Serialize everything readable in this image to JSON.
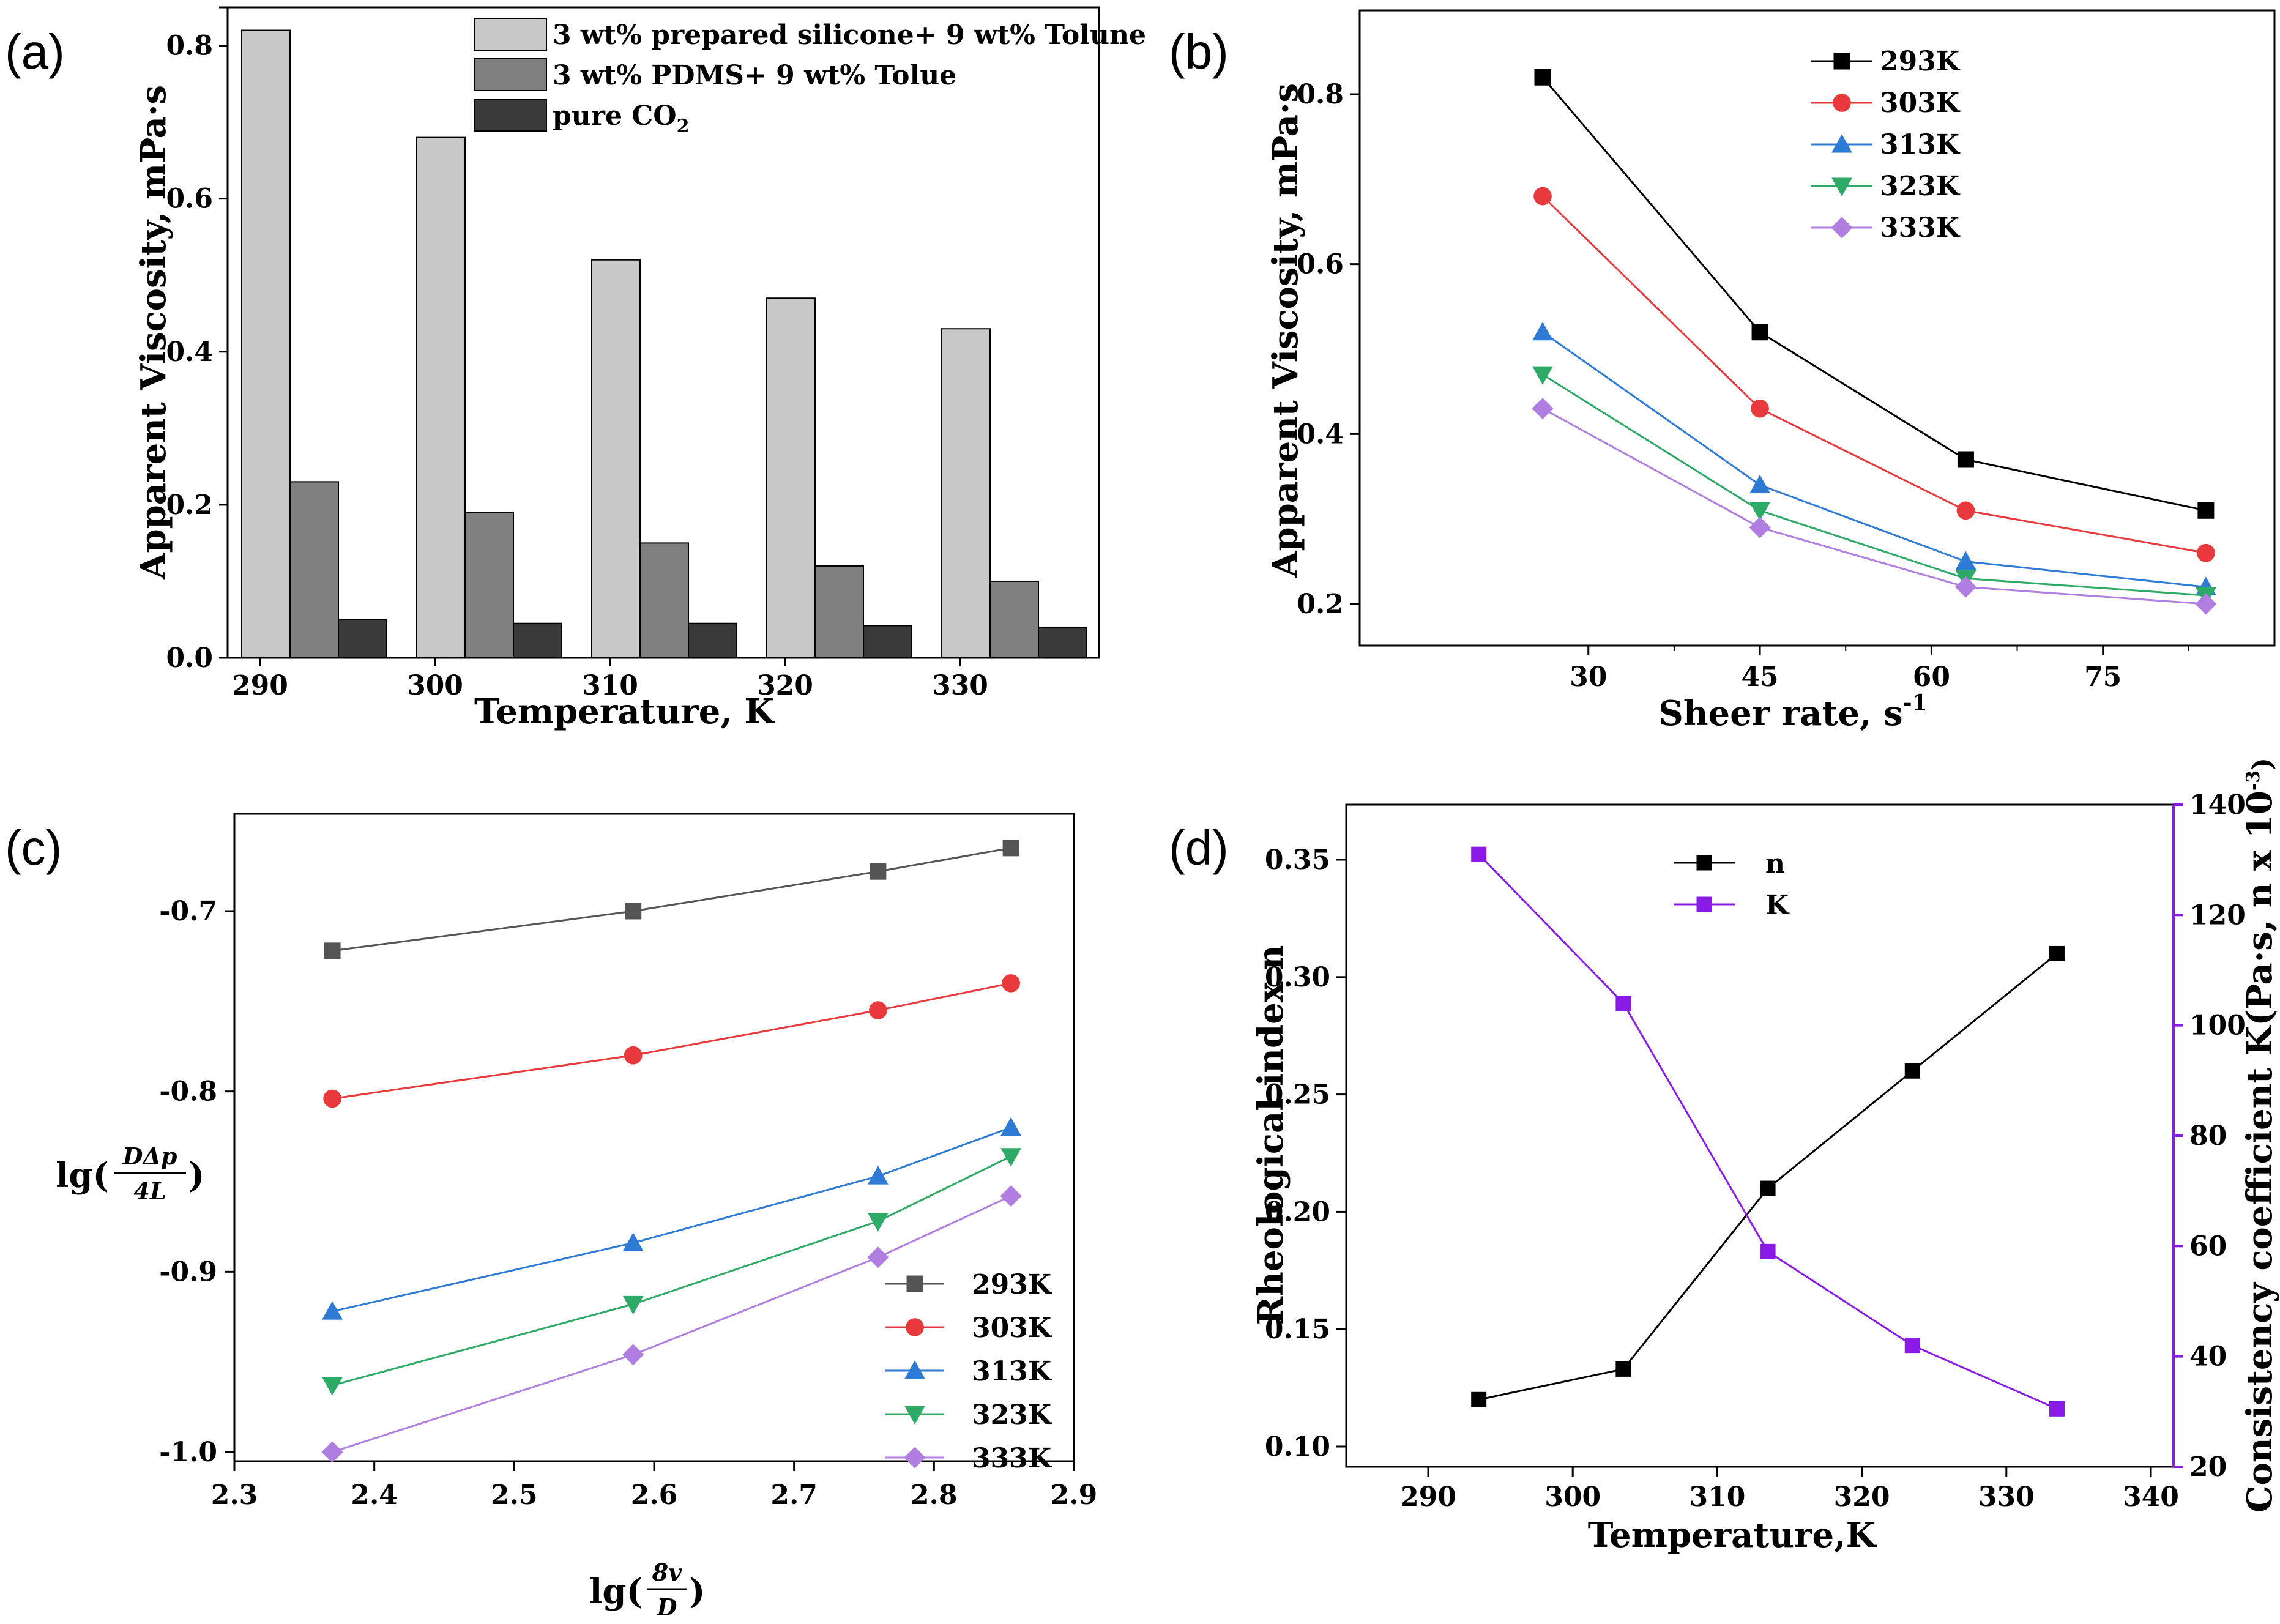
{
  "colors": {
    "s293": "#000000",
    "s303": "#e8393c",
    "s313": "#2e7bd6",
    "s323": "#2daa66",
    "s333": "#b07ee0",
    "n_series": "#000000",
    "k_series": "#8a1be6",
    "bar_light": "#c8c8c8",
    "bar_mid": "#808080",
    "bar_dark": "#3a3a3a",
    "gray293c": "#555555"
  },
  "chart_data": [
    {
      "panel": "(a)",
      "type": "bar",
      "xlabel": "Temperature, K",
      "ylabel": "Apparent Viscosity, mPa·s",
      "ylim": [
        0,
        0.85
      ],
      "yticks": [
        "0.0",
        "0.2",
        "0.4",
        "0.6",
        "0.8"
      ],
      "categories": [
        "290",
        "300",
        "310",
        "320",
        "330"
      ],
      "series": [
        {
          "name": "3 wt% prepared silicone+ 9 wt% Tolune",
          "color": "bar_light",
          "values": [
            0.82,
            0.68,
            0.52,
            0.47,
            0.43
          ]
        },
        {
          "name": "3 wt% PDMS+ 9 wt% Tolue",
          "color": "bar_mid",
          "values": [
            0.23,
            0.19,
            0.15,
            0.12,
            0.1
          ]
        },
        {
          "name": "pure CO",
          "sub": "2",
          "color": "bar_dark",
          "values": [
            0.05,
            0.045,
            0.045,
            0.042,
            0.04
          ]
        }
      ]
    },
    {
      "panel": "(b)",
      "type": "line",
      "xlabel": "Sheer rate, s",
      "xlabel_sup": "-1",
      "ylabel": "Apparent Viscosity, mPa·s",
      "xlim": [
        10,
        90
      ],
      "ylim": [
        0.15,
        0.9
      ],
      "xticks": [
        "30",
        "45",
        "60",
        "75"
      ],
      "yticks": [
        "0.2",
        "0.4",
        "0.6",
        "0.8"
      ],
      "x": [
        26,
        45,
        63,
        84
      ],
      "series": [
        {
          "name": "293K",
          "color": "s293",
          "marker": "square",
          "values": [
            0.82,
            0.52,
            0.37,
            0.31
          ]
        },
        {
          "name": "303K",
          "color": "s303",
          "marker": "circle",
          "values": [
            0.68,
            0.43,
            0.31,
            0.26
          ]
        },
        {
          "name": "313K",
          "color": "s313",
          "marker": "triangle-up",
          "values": [
            0.52,
            0.34,
            0.25,
            0.22
          ]
        },
        {
          "name": "323K",
          "color": "s323",
          "marker": "triangle-down",
          "values": [
            0.47,
            0.31,
            0.23,
            0.21
          ]
        },
        {
          "name": "333K",
          "color": "s333",
          "marker": "diamond",
          "values": [
            0.43,
            0.29,
            0.22,
            0.2
          ]
        }
      ]
    },
    {
      "panel": "(c)",
      "type": "line",
      "xlabel_prefix": "lg(",
      "xlabel_num": "8v",
      "xlabel_den": "D",
      "xlabel_suffix": ")",
      "ylabel_prefix": "lg(",
      "ylabel_num": "DΔp",
      "ylabel_den": "4L",
      "ylabel_suffix": ")",
      "xlim": [
        2.3,
        2.9
      ],
      "ylim": [
        -1.02,
        -0.655
      ],
      "xticks": [
        "2.3",
        "2.4",
        "2.5",
        "2.6",
        "2.7",
        "2.8",
        "2.9"
      ],
      "yticks": [
        "-0.7",
        "-0.8",
        "-0.9",
        "-1.0"
      ],
      "x": [
        2.37,
        2.585,
        2.76,
        2.855
      ],
      "series": [
        {
          "name": "293K",
          "color": "gray293c",
          "marker": "square",
          "values": [
            -0.722,
            -0.7,
            -0.678,
            -0.665
          ]
        },
        {
          "name": "303K",
          "color": "s303",
          "marker": "circle",
          "values": [
            -0.804,
            -0.78,
            -0.755,
            -0.74
          ]
        },
        {
          "name": "313K",
          "color": "s313",
          "marker": "triangle-up",
          "values": [
            -0.922,
            -0.884,
            -0.847,
            -0.82
          ]
        },
        {
          "name": "323K",
          "color": "s323",
          "marker": "triangle-down",
          "values": [
            -0.963,
            -0.918,
            -0.872,
            -0.836
          ]
        },
        {
          "name": "333K",
          "color": "s333",
          "marker": "diamond",
          "values": [
            -1.0,
            -0.946,
            -0.892,
            -0.858
          ]
        }
      ]
    },
    {
      "panel": "(d)",
      "type": "line",
      "xlabel": "Temperature,K",
      "ylabel_left": "Rheological index n",
      "ylabel_right": "Consistency coefficient K(Pa·s, n x 10",
      "ylabel_right_sup": "-3",
      "ylabel_right_suffix": ")",
      "xlim": [
        285,
        342
      ],
      "ylim_left": [
        0.09,
        0.37
      ],
      "ylim_right": [
        20,
        140
      ],
      "xticks": [
        "290",
        "300",
        "310",
        "320",
        "330",
        "340"
      ],
      "yticks_left": [
        "0.10",
        "0.15",
        "0.20",
        "0.25",
        "0.30",
        "0.35"
      ],
      "yticks_right": [
        "20",
        "40",
        "60",
        "80",
        "100",
        "120",
        "140"
      ],
      "x": [
        293.5,
        303.5,
        313.5,
        323.5,
        333.5
      ],
      "series": [
        {
          "name": "n",
          "axis": "left",
          "color": "n_series",
          "marker": "square",
          "values": [
            0.12,
            0.133,
            0.21,
            0.26,
            0.31
          ]
        },
        {
          "name": "K",
          "axis": "right",
          "color": "k_series",
          "marker": "square",
          "values": [
            131,
            104,
            59,
            42,
            30.5
          ]
        }
      ]
    }
  ]
}
